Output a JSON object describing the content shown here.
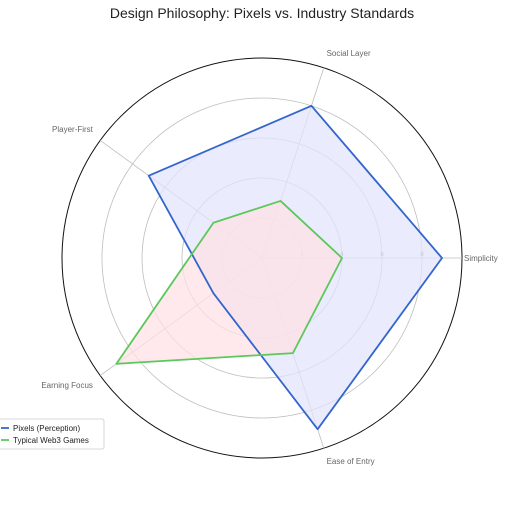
{
  "chart_data": {
    "type": "radar",
    "title": "Design Philosophy: Pixels vs. Industry Standards",
    "axes": [
      "Simplicity",
      "Social Layer",
      "Player-First",
      "Earning Focus",
      "Ease of Entry"
    ],
    "rlim": [
      0,
      10
    ],
    "rticks": [
      2,
      4,
      6,
      8
    ],
    "rtick_labels": [
      "2",
      "4",
      "6",
      "8"
    ],
    "grid": true,
    "legend_position": "lower-left",
    "series": [
      {
        "name": "Pixels (Perception)",
        "values": [
          9,
          8,
          7,
          3,
          9
        ],
        "color": "#3366cc",
        "fill": "#e3e4fb"
      },
      {
        "name": "Typical Web3 Games",
        "values": [
          4,
          3,
          3,
          9,
          5
        ],
        "color": "#5cc85c",
        "fill": "#ffe1e5"
      }
    ]
  }
}
